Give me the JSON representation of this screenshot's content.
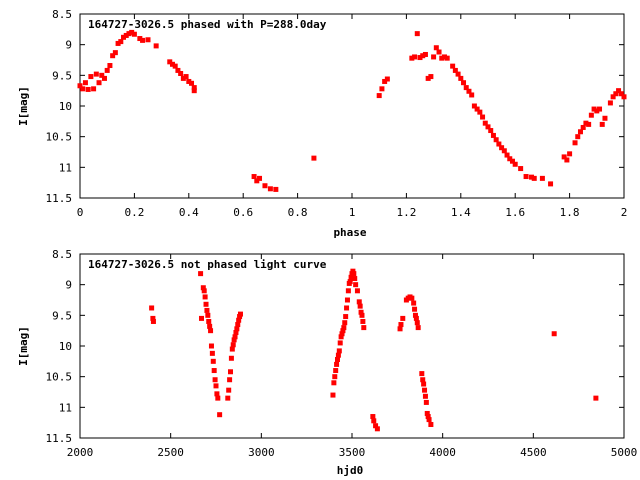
{
  "chart_data": [
    {
      "type": "scatter",
      "title": "164727-3026.5 phased with P=288.0day",
      "xlabel": "phase",
      "ylabel": "I[mag]",
      "xlim": [
        0,
        2
      ],
      "ylim": [
        8.5,
        11.5
      ],
      "y_inverted": true,
      "xticks": [
        0,
        0.2,
        0.4,
        0.6,
        0.8,
        1,
        1.2,
        1.4,
        1.6,
        1.8,
        2
      ],
      "yticks": [
        8.5,
        9,
        9.5,
        10,
        10.5,
        11,
        11.5
      ],
      "marker_color": "#ff0000",
      "points": [
        [
          0.0,
          9.67
        ],
        [
          0.01,
          9.72
        ],
        [
          0.02,
          9.62
        ],
        [
          0.03,
          9.73
        ],
        [
          0.04,
          9.52
        ],
        [
          0.05,
          9.72
        ],
        [
          0.06,
          9.48
        ],
        [
          0.07,
          9.62
        ],
        [
          0.08,
          9.5
        ],
        [
          0.09,
          9.55
        ],
        [
          0.1,
          9.42
        ],
        [
          0.11,
          9.34
        ],
        [
          0.12,
          9.18
        ],
        [
          0.13,
          9.13
        ],
        [
          0.14,
          8.98
        ],
        [
          0.15,
          8.95
        ],
        [
          0.16,
          8.88
        ],
        [
          0.17,
          8.85
        ],
        [
          0.18,
          8.82
        ],
        [
          0.19,
          8.8
        ],
        [
          0.2,
          8.83
        ],
        [
          0.22,
          8.9
        ],
        [
          0.23,
          8.93
        ],
        [
          0.25,
          8.92
        ],
        [
          0.28,
          9.02
        ],
        [
          0.33,
          9.28
        ],
        [
          0.34,
          9.32
        ],
        [
          0.35,
          9.35
        ],
        [
          0.36,
          9.42
        ],
        [
          0.37,
          9.47
        ],
        [
          0.38,
          9.55
        ],
        [
          0.39,
          9.52
        ],
        [
          0.4,
          9.6
        ],
        [
          0.41,
          9.63
        ],
        [
          0.42,
          9.7
        ],
        [
          0.42,
          9.75
        ],
        [
          0.64,
          11.15
        ],
        [
          0.65,
          11.22
        ],
        [
          0.66,
          11.18
        ],
        [
          0.68,
          11.3
        ],
        [
          0.7,
          11.35
        ],
        [
          0.72,
          11.36
        ],
        [
          0.86,
          10.85
        ],
        [
          1.1,
          9.83
        ],
        [
          1.11,
          9.72
        ],
        [
          1.12,
          9.6
        ],
        [
          1.13,
          9.56
        ],
        [
          1.22,
          9.22
        ],
        [
          1.23,
          9.2
        ],
        [
          1.24,
          8.82
        ],
        [
          1.25,
          9.21
        ],
        [
          1.26,
          9.18
        ],
        [
          1.27,
          9.16
        ],
        [
          1.28,
          9.55
        ],
        [
          1.29,
          9.52
        ],
        [
          1.3,
          9.2
        ],
        [
          1.31,
          9.05
        ],
        [
          1.32,
          9.12
        ],
        [
          1.33,
          9.22
        ],
        [
          1.34,
          9.2
        ],
        [
          1.35,
          9.22
        ],
        [
          1.37,
          9.35
        ],
        [
          1.38,
          9.42
        ],
        [
          1.39,
          9.48
        ],
        [
          1.4,
          9.55
        ],
        [
          1.41,
          9.62
        ],
        [
          1.42,
          9.7
        ],
        [
          1.43,
          9.76
        ],
        [
          1.44,
          9.82
        ],
        [
          1.45,
          10.0
        ],
        [
          1.46,
          10.05
        ],
        [
          1.47,
          10.1
        ],
        [
          1.48,
          10.18
        ],
        [
          1.49,
          10.28
        ],
        [
          1.5,
          10.34
        ],
        [
          1.51,
          10.4
        ],
        [
          1.52,
          10.48
        ],
        [
          1.53,
          10.55
        ],
        [
          1.54,
          10.62
        ],
        [
          1.55,
          10.68
        ],
        [
          1.56,
          10.73
        ],
        [
          1.57,
          10.8
        ],
        [
          1.58,
          10.86
        ],
        [
          1.59,
          10.9
        ],
        [
          1.6,
          10.95
        ],
        [
          1.62,
          11.02
        ],
        [
          1.64,
          11.15
        ],
        [
          1.66,
          11.16
        ],
        [
          1.67,
          11.18
        ],
        [
          1.7,
          11.18
        ],
        [
          1.73,
          11.27
        ],
        [
          1.78,
          10.83
        ],
        [
          1.79,
          10.88
        ],
        [
          1.8,
          10.78
        ],
        [
          1.82,
          10.6
        ],
        [
          1.83,
          10.5
        ],
        [
          1.84,
          10.42
        ],
        [
          1.85,
          10.35
        ],
        [
          1.86,
          10.28
        ],
        [
          1.87,
          10.3
        ],
        [
          1.88,
          10.15
        ],
        [
          1.89,
          10.05
        ],
        [
          1.9,
          10.08
        ],
        [
          1.91,
          10.05
        ],
        [
          1.92,
          10.3
        ],
        [
          1.93,
          10.2
        ],
        [
          1.95,
          9.95
        ],
        [
          1.96,
          9.85
        ],
        [
          1.97,
          9.8
        ],
        [
          1.98,
          9.75
        ],
        [
          1.99,
          9.8
        ],
        [
          2.0,
          9.85
        ]
      ]
    },
    {
      "type": "scatter",
      "title": "164727-3026.5 not phased light curve",
      "xlabel": "hjd0",
      "ylabel": "I[mag]",
      "xlim": [
        2000,
        5000
      ],
      "ylim": [
        8.5,
        11.5
      ],
      "y_inverted": true,
      "xticks": [
        2000,
        2500,
        3000,
        3500,
        4000,
        4500,
        5000
      ],
      "yticks": [
        8.5,
        9,
        9.5,
        10,
        10.5,
        11,
        11.5
      ],
      "marker_color": "#ff0000",
      "points": [
        [
          2395,
          9.38
        ],
        [
          2402,
          9.55
        ],
        [
          2405,
          9.6
        ],
        [
          2665,
          8.82
        ],
        [
          2670,
          9.55
        ],
        [
          2680,
          9.05
        ],
        [
          2685,
          9.1
        ],
        [
          2690,
          9.2
        ],
        [
          2695,
          9.32
        ],
        [
          2700,
          9.42
        ],
        [
          2705,
          9.5
        ],
        [
          2710,
          9.6
        ],
        [
          2715,
          9.68
        ],
        [
          2720,
          9.75
        ],
        [
          2725,
          10.0
        ],
        [
          2730,
          10.12
        ],
        [
          2735,
          10.25
        ],
        [
          2740,
          10.4
        ],
        [
          2745,
          10.55
        ],
        [
          2750,
          10.65
        ],
        [
          2755,
          10.78
        ],
        [
          2760,
          10.85
        ],
        [
          2770,
          11.12
        ],
        [
          2815,
          10.85
        ],
        [
          2820,
          10.72
        ],
        [
          2825,
          10.55
        ],
        [
          2830,
          10.42
        ],
        [
          2835,
          10.2
        ],
        [
          2840,
          10.05
        ],
        [
          2845,
          9.98
        ],
        [
          2850,
          9.9
        ],
        [
          2855,
          9.85
        ],
        [
          2860,
          9.78
        ],
        [
          2865,
          9.72
        ],
        [
          2870,
          9.65
        ],
        [
          2875,
          9.58
        ],
        [
          2880,
          9.52
        ],
        [
          2885,
          9.48
        ],
        [
          3395,
          10.8
        ],
        [
          3400,
          10.6
        ],
        [
          3405,
          10.5
        ],
        [
          3410,
          10.4
        ],
        [
          3415,
          10.3
        ],
        [
          3420,
          10.22
        ],
        [
          3425,
          10.15
        ],
        [
          3430,
          10.08
        ],
        [
          3435,
          9.95
        ],
        [
          3440,
          9.85
        ],
        [
          3445,
          9.8
        ],
        [
          3450,
          9.75
        ],
        [
          3455,
          9.7
        ],
        [
          3460,
          9.62
        ],
        [
          3465,
          9.52
        ],
        [
          3470,
          9.38
        ],
        [
          3475,
          9.25
        ],
        [
          3480,
          9.1
        ],
        [
          3485,
          8.98
        ],
        [
          3490,
          8.95
        ],
        [
          3495,
          8.88
        ],
        [
          3500,
          8.82
        ],
        [
          3505,
          8.78
        ],
        [
          3510,
          8.82
        ],
        [
          3515,
          8.9
        ],
        [
          3520,
          9.0
        ],
        [
          3530,
          9.1
        ],
        [
          3540,
          9.28
        ],
        [
          3545,
          9.35
        ],
        [
          3550,
          9.45
        ],
        [
          3555,
          9.5
        ],
        [
          3560,
          9.6
        ],
        [
          3565,
          9.7
        ],
        [
          3615,
          11.15
        ],
        [
          3620,
          11.22
        ],
        [
          3630,
          11.3
        ],
        [
          3640,
          11.35
        ],
        [
          3765,
          9.72
        ],
        [
          3770,
          9.65
        ],
        [
          3780,
          9.55
        ],
        [
          3800,
          9.25
        ],
        [
          3810,
          9.22
        ],
        [
          3820,
          9.2
        ],
        [
          3830,
          9.22
        ],
        [
          3840,
          9.3
        ],
        [
          3845,
          9.4
        ],
        [
          3850,
          9.5
        ],
        [
          3855,
          9.55
        ],
        [
          3860,
          9.62
        ],
        [
          3865,
          9.7
        ],
        [
          3885,
          10.45
        ],
        [
          3890,
          10.55
        ],
        [
          3895,
          10.62
        ],
        [
          3900,
          10.72
        ],
        [
          3905,
          10.82
        ],
        [
          3910,
          10.92
        ],
        [
          3915,
          11.1
        ],
        [
          3920,
          11.15
        ],
        [
          3925,
          11.2
        ],
        [
          3935,
          11.28
        ],
        [
          4615,
          9.8
        ],
        [
          4845,
          10.85
        ]
      ]
    }
  ]
}
